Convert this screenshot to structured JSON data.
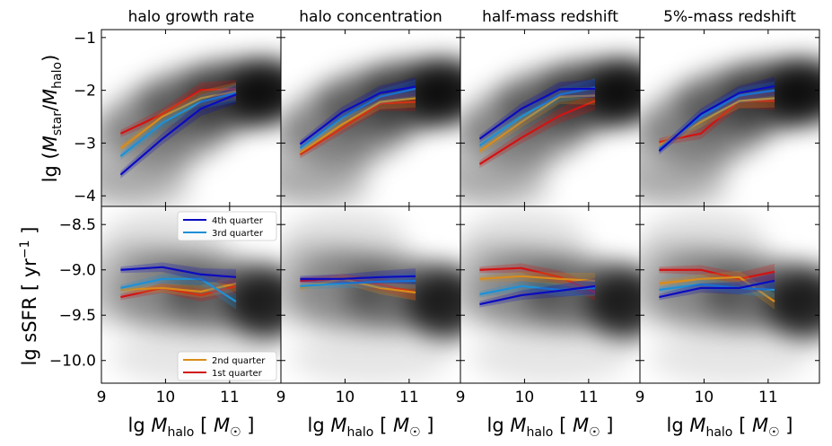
{
  "figure": {
    "column_titles": [
      "halo growth rate",
      "halo concentration",
      "half-mass redshift",
      "5%-mass redshift"
    ],
    "xlabel": {
      "base": "lg ",
      "var": "M",
      "sub": "halo",
      "bracket_open": " [ ",
      "unit": "M",
      "unit_sub": "☉",
      "bracket_close": " ]"
    },
    "ylabel_top": {
      "base": "lg (",
      "num": "M",
      "num_sub": "star",
      "slash": "/",
      "den": "M",
      "den_sub": "halo",
      "close": ")"
    },
    "ylabel_bottom": {
      "base": "lg sSFR [ yr",
      "exp": "−1",
      "close": " ]"
    },
    "legend_top": [
      "4th quarter",
      "3rd quarter"
    ],
    "legend_bottom": [
      "2nd quarter",
      "1st quarter"
    ],
    "colors": {
      "q4": "#0b0bbf",
      "q3": "#1e90d6",
      "q2": "#d98c1a",
      "q1": "#d11313"
    }
  },
  "chart_data": {
    "type": "line",
    "x_range": [
      9,
      11.8
    ],
    "x_ticks": [
      9,
      10,
      11
    ],
    "x_tick_labels": [
      "9",
      "10",
      "11"
    ],
    "series_names": [
      "4th quarter",
      "3rd quarter",
      "2nd quarter",
      "1st quarter"
    ],
    "series_keys": [
      "q4",
      "q3",
      "q2",
      "q1"
    ],
    "x": [
      9.3,
      9.95,
      10.55,
      11.1
    ],
    "top_row": {
      "y_range": [
        -4.2,
        -0.85
      ],
      "y_ticks": [
        -4,
        -3,
        -2,
        -1
      ],
      "y_tick_labels": [
        "−4",
        "−3",
        "−2",
        "−1"
      ],
      "panels": [
        {
          "title": "halo growth rate",
          "series": {
            "q4": [
              -3.6,
              -2.92,
              -2.35,
              -2.08
            ],
            "q3": [
              -3.25,
              -2.62,
              -2.22,
              -2.05
            ],
            "q2": [
              -3.1,
              -2.5,
              -2.15,
              -2.02
            ],
            "q1": [
              -2.82,
              -2.45,
              -1.99,
              -1.98
            ]
          }
        },
        {
          "title": "halo concentration",
          "series": {
            "q4": [
              -3.02,
              -2.42,
              -2.05,
              -1.93
            ],
            "q3": [
              -3.1,
              -2.52,
              -2.12,
              -1.97
            ],
            "q2": [
              -3.18,
              -2.65,
              -2.22,
              -2.15
            ],
            "q1": [
              -3.22,
              -2.72,
              -2.25,
              -2.22
            ]
          }
        },
        {
          "title": "half-mass redshift",
          "series": {
            "q4": [
              -2.92,
              -2.35,
              -1.98,
              -1.97
            ],
            "q3": [
              -3.05,
              -2.5,
              -2.08,
              -1.95
            ],
            "q2": [
              -3.15,
              -2.6,
              -2.12,
              -2.1
            ],
            "q1": [
              -3.4,
              -2.9,
              -2.48,
              -2.2
            ]
          }
        },
        {
          "title": "5%-mass redshift",
          "series": {
            "q4": [
              -3.15,
              -2.45,
              -2.05,
              -1.92
            ],
            "q3": [
              -3.12,
              -2.5,
              -2.1,
              -2.0
            ],
            "q2": [
              -3.05,
              -2.6,
              -2.2,
              -2.15
            ],
            "q1": [
              -2.98,
              -2.82,
              -2.2,
              -2.2
            ]
          }
        }
      ]
    },
    "bottom_row": {
      "y_range": [
        -10.25,
        -8.3
      ],
      "y_ticks": [
        -10.0,
        -9.5,
        -9.0,
        -8.5
      ],
      "y_tick_labels": [
        "−10.0",
        "−9.5",
        "−9.0",
        "−8.5"
      ],
      "panels": [
        {
          "title": "halo growth rate",
          "series": {
            "q4": [
              -9.0,
              -8.97,
              -9.05,
              -9.08
            ],
            "q3": [
              -9.2,
              -9.1,
              -9.1,
              -9.35
            ],
            "q2": [
              -9.22,
              -9.2,
              -9.24,
              -9.15
            ],
            "q1": [
              -9.3,
              -9.2,
              -9.28,
              -9.18
            ]
          }
        },
        {
          "title": "halo concentration",
          "series": {
            "q4": [
              -9.1,
              -9.1,
              -9.08,
              -9.07
            ],
            "q3": [
              -9.18,
              -9.15,
              -9.13,
              -9.12
            ],
            "q2": [
              -9.2,
              -9.1,
              -9.2,
              -9.25
            ],
            "q1": [
              -9.12,
              -9.1,
              -9.16,
              -9.25
            ]
          }
        },
        {
          "title": "half-mass redshift",
          "series": {
            "q4": [
              -9.38,
              -9.28,
              -9.23,
              -9.18
            ],
            "q3": [
              -9.27,
              -9.18,
              -9.22,
              -9.2
            ],
            "q2": [
              -9.1,
              -9.07,
              -9.1,
              -9.12
            ],
            "q1": [
              -9.0,
              -8.98,
              -9.08,
              -9.25
            ]
          }
        },
        {
          "title": "5%-mass redshift",
          "series": {
            "q4": [
              -9.3,
              -9.2,
              -9.2,
              -9.12
            ],
            "q3": [
              -9.22,
              -9.16,
              -9.2,
              -9.22
            ],
            "q2": [
              -9.15,
              -9.1,
              -9.08,
              -9.35
            ],
            "q1": [
              -9.0,
              -9.0,
              -9.1,
              -9.02
            ]
          }
        }
      ]
    }
  }
}
